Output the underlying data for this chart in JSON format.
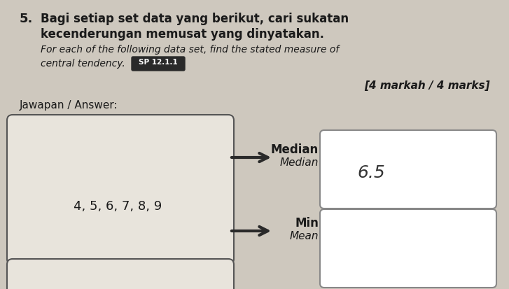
{
  "bg_color": "#cec8be",
  "question_number": "5.",
  "title_malay": "Bagi setiap set data yang berikut, cari sukatan",
  "title_malay2": "kecenderungan memusat yang dinyatakan.",
  "title_english": "For each of the following data set, find the stated measure of",
  "title_english2": "central tendency.",
  "sp_label": "SP 12.1.1",
  "marks_text": "[4 markah / 4 marks]",
  "jawapan_text": "Jawapan / Answer:",
  "data_values": "4, 5, 6, 7, 8, 9",
  "median_label_malay": "Median",
  "median_label_english": "Median",
  "mean_label_malay": "Min",
  "mean_label_english": "Mean",
  "median_answer": "6.5",
  "mean_answer": ""
}
